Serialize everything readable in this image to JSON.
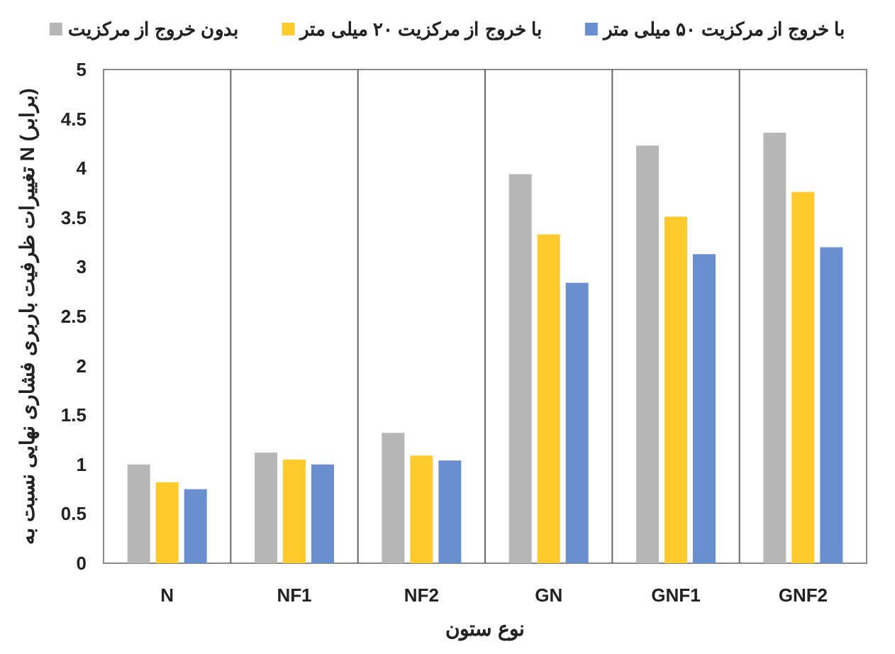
{
  "chart_data": {
    "type": "bar",
    "xlabel": "نوع ستون",
    "ylabel": "تغییرات ظرفیت باربری فشاری نهایی نسبت به N (برابر)",
    "categories": [
      "N",
      "NF1",
      "NF2",
      "GN",
      "GNF1",
      "GNF2"
    ],
    "series": [
      {
        "name": "بدون خروج از مرکزیت",
        "color": "#b7b7b7",
        "values": [
          1.0,
          1.12,
          1.32,
          3.94,
          4.23,
          4.36
        ]
      },
      {
        "name": "با خروج از مرکزیت ۲۰ میلی متر",
        "color": "#ffca2c",
        "values": [
          0.82,
          1.05,
          1.09,
          3.33,
          3.51,
          3.76
        ]
      },
      {
        "name": "با خروج از مرکزیت ۵۰ میلی متر",
        "color": "#6a8fd0",
        "values": [
          0.75,
          1.0,
          1.04,
          2.84,
          3.13,
          3.2
        ]
      }
    ],
    "ylim": [
      0,
      5
    ],
    "yticks": [
      0,
      0.5,
      1,
      1.5,
      2,
      2.5,
      3,
      3.5,
      4,
      4.5,
      5
    ],
    "grid": "x",
    "legend": "top"
  }
}
